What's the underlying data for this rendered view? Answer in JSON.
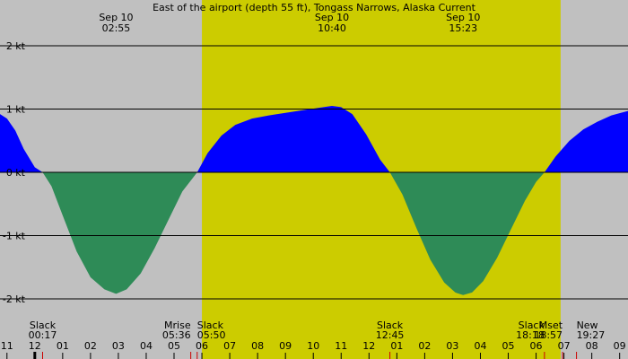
{
  "chart_data": {
    "type": "area",
    "title": "East of the airport (depth 55 ft), Tongass Narrows, Alaska Current",
    "ylim": [
      -2.5,
      2.5
    ],
    "y_ticks": [
      {
        "value": 2,
        "label": "2 kt"
      },
      {
        "value": 1,
        "label": "1 kt"
      },
      {
        "value": 0,
        "label": "0 kt"
      },
      {
        "value": -1,
        "label": "-1 kt"
      },
      {
        "value": -2,
        "label": "-2 kt"
      }
    ],
    "x_range_hours": [
      -1.25,
      21.3
    ],
    "x_ticks": [
      "11",
      "12",
      "01",
      "02",
      "03",
      "04",
      "05",
      "06",
      "07",
      "08",
      "09",
      "10",
      "11",
      "12",
      "01",
      "02",
      "03",
      "04",
      "05",
      "06",
      "07",
      "08",
      "09"
    ],
    "x_tick_start_hour": -1,
    "daylight_hours": [
      6.0,
      18.88
    ],
    "colors": {
      "background": "#c0c0c0",
      "daylight": "#cccc00",
      "flood": "#0000ff",
      "ebb": "#2e8b57",
      "gridline": "#000000"
    },
    "series": [
      {
        "points": [
          [
            -1.25,
            0.92
          ],
          [
            -1.0,
            0.85
          ],
          [
            -0.7,
            0.66
          ],
          [
            -0.4,
            0.37
          ],
          [
            0.0,
            0.08
          ],
          [
            0.28,
            0.0
          ],
          [
            0.6,
            -0.22
          ],
          [
            1.0,
            -0.68
          ],
          [
            1.5,
            -1.25
          ],
          [
            2.0,
            -1.66
          ],
          [
            2.5,
            -1.85
          ],
          [
            2.92,
            -1.92
          ],
          [
            3.3,
            -1.85
          ],
          [
            3.8,
            -1.6
          ],
          [
            4.3,
            -1.2
          ],
          [
            4.8,
            -0.75
          ],
          [
            5.3,
            -0.3
          ],
          [
            5.83,
            0.0
          ],
          [
            6.2,
            0.3
          ],
          [
            6.7,
            0.58
          ],
          [
            7.2,
            0.75
          ],
          [
            7.8,
            0.85
          ],
          [
            8.4,
            0.9
          ],
          [
            9.0,
            0.94
          ],
          [
            9.6,
            0.98
          ],
          [
            10.2,
            1.02
          ],
          [
            10.67,
            1.05
          ],
          [
            11.0,
            1.03
          ],
          [
            11.4,
            0.92
          ],
          [
            11.9,
            0.6
          ],
          [
            12.4,
            0.2
          ],
          [
            12.75,
            0.0
          ],
          [
            13.2,
            -0.35
          ],
          [
            13.7,
            -0.88
          ],
          [
            14.2,
            -1.38
          ],
          [
            14.7,
            -1.74
          ],
          [
            15.1,
            -1.9
          ],
          [
            15.38,
            -1.94
          ],
          [
            15.7,
            -1.9
          ],
          [
            16.1,
            -1.72
          ],
          [
            16.6,
            -1.35
          ],
          [
            17.1,
            -0.9
          ],
          [
            17.6,
            -0.45
          ],
          [
            18.0,
            -0.15
          ],
          [
            18.3,
            0.0
          ],
          [
            18.7,
            0.25
          ],
          [
            19.2,
            0.5
          ],
          [
            19.7,
            0.68
          ],
          [
            20.2,
            0.8
          ],
          [
            20.7,
            0.9
          ],
          [
            21.3,
            0.97
          ]
        ]
      }
    ],
    "top_labels": [
      {
        "hour": 2.92,
        "date": "Sep 10",
        "time": "02:55"
      },
      {
        "hour": 10.67,
        "date": "Sep 10",
        "time": "10:40"
      },
      {
        "hour": 15.38,
        "date": "Sep 10",
        "time": "15:23"
      }
    ],
    "bottom_events": [
      {
        "hour": 0.28,
        "event": "Slack",
        "time": "00:17",
        "anchor": "middle"
      },
      {
        "hour": 5.6,
        "event": "Mrise",
        "time": "05:36",
        "anchor": "end"
      },
      {
        "hour": 5.83,
        "event": "Slack",
        "time": "05:50",
        "anchor": "start"
      },
      {
        "hour": 12.75,
        "event": "Slack",
        "time": "12:45",
        "anchor": "middle"
      },
      {
        "hour": 18.3,
        "event": "Slack",
        "time": "18:18",
        "anchor": "end"
      },
      {
        "hour": 18.95,
        "event": "Mset",
        "time": "18:57",
        "anchor": "end"
      },
      {
        "hour": 19.45,
        "event": "New",
        "time": "19:27",
        "anchor": "start"
      }
    ],
    "event_marks": [
      {
        "hour": 0.0,
        "color": "#000000"
      },
      {
        "hour": 0.28,
        "color": "#cc0000"
      },
      {
        "hour": 5.6,
        "color": "#cc0000"
      },
      {
        "hour": 5.83,
        "color": "#cc0000"
      },
      {
        "hour": 12.75,
        "color": "#cc0000"
      },
      {
        "hour": 18.3,
        "color": "#cc0000"
      },
      {
        "hour": 18.95,
        "color": "#cc0000"
      },
      {
        "hour": 19.45,
        "color": "#cc0000"
      }
    ]
  }
}
